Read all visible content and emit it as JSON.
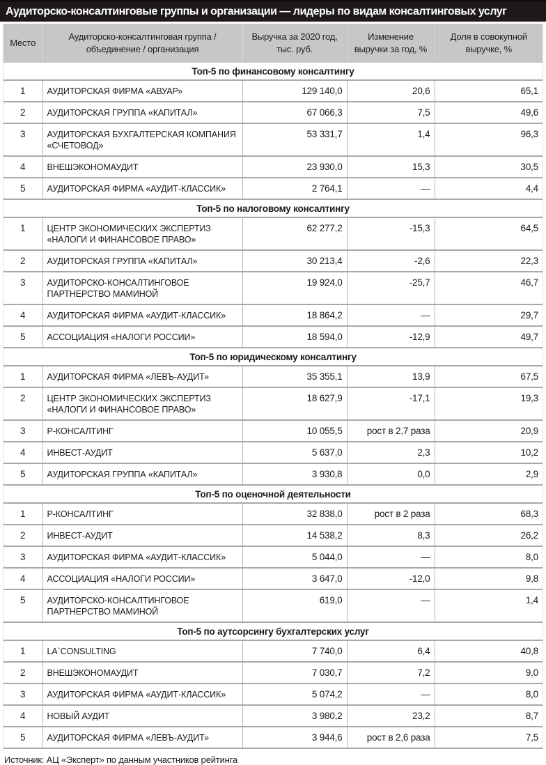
{
  "chart_data": {
    "type": "table",
    "title": "Аудиторско-консалтинговые группы и организации — лидеры по видам консалтинговых услуг",
    "columns": [
      "Место",
      "Аудиторско-консалтинговая группа /\nобъединение / организация",
      "Выручка за 2020 год,\nтыс. руб.",
      "Изменение\nвыручки за год, %",
      "Доля в совокупной\nвыручке, %"
    ],
    "sections": [
      {
        "title": "Топ-5 по финансовому консалтингу",
        "rows": [
          {
            "place": "1",
            "name": "АУДИТОРСКАЯ ФИРМА «АВУАР»",
            "revenue": "129 140,0",
            "change": "20,6",
            "share": "65,1"
          },
          {
            "place": "2",
            "name": "АУДИТОРСКАЯ ГРУППА «КАПИТАЛ»",
            "revenue": "67 066,3",
            "change": "7,5",
            "share": "49,6"
          },
          {
            "place": "3",
            "name": "АУДИТОРСКАЯ БУХГАЛТЕРСКАЯ КОМПАНИЯ «СЧЕТОВОД»",
            "revenue": "53 331,7",
            "change": "1,4",
            "share": "96,3"
          },
          {
            "place": "4",
            "name": "ВНЕШЭКОНОМАУДИТ",
            "revenue": "23 930,0",
            "change": "15,3",
            "share": "30,5"
          },
          {
            "place": "5",
            "name": "АУДИТОРСКАЯ ФИРМА «АУДИТ-КЛАССИК»",
            "revenue": "2 764,1",
            "change": "—",
            "share": "4,4"
          }
        ]
      },
      {
        "title": "Топ-5 по налоговому консалтингу",
        "rows": [
          {
            "place": "1",
            "name": "ЦЕНТР ЭКОНОМИЧЕСКИХ ЭКСПЕРТИЗ «НАЛОГИ И ФИНАНСОВОЕ ПРАВО»",
            "revenue": "62 277,2",
            "change": "-15,3",
            "share": "64,5"
          },
          {
            "place": "2",
            "name": "АУДИТОРСКАЯ ГРУППА «КАПИТАЛ»",
            "revenue": "30 213,4",
            "change": "-2,6",
            "share": "22,3"
          },
          {
            "place": "3",
            "name": "АУДИТОРСКО-КОНСАЛТИНГОВОЕ ПАРТНЕРСТВО МАМИНОЙ",
            "revenue": "19 924,0",
            "change": "-25,7",
            "share": "46,7"
          },
          {
            "place": "4",
            "name": "АУДИТОРСКАЯ ФИРМА «АУДИТ-КЛАССИК»",
            "revenue": "18 864,2",
            "change": "—",
            "share": "29,7"
          },
          {
            "place": "5",
            "name": "АССОЦИАЦИЯ «НАЛОГИ РОССИИ»",
            "revenue": "18 594,0",
            "change": "-12,9",
            "share": "49,7"
          }
        ]
      },
      {
        "title": "Топ-5 по юридическому консалтингу",
        "rows": [
          {
            "place": "1",
            "name": "АУДИТОРСКАЯ ФИРМА «ЛЕВЪ-АУДИТ»",
            "revenue": "35 355,1",
            "change": "13,9",
            "share": "67,5"
          },
          {
            "place": "2",
            "name": "ЦЕНТР ЭКОНОМИЧЕСКИХ ЭКСПЕРТИЗ «НАЛОГИ И ФИНАНСОВОЕ ПРАВО»",
            "revenue": "18 627,9",
            "change": "-17,1",
            "share": "19,3"
          },
          {
            "place": "3",
            "name": "Р-КОНСАЛТИНГ",
            "revenue": "10 055,5",
            "change": "рост в 2,7 раза",
            "share": "20,9"
          },
          {
            "place": "4",
            "name": "ИНВЕСТ-АУДИТ",
            "revenue": "5 637,0",
            "change": "2,3",
            "share": "10,2"
          },
          {
            "place": "5",
            "name": "АУДИТОРСКАЯ ГРУППА «КАПИТАЛ»",
            "revenue": "3 930,8",
            "change": "0,0",
            "share": "2,9"
          }
        ]
      },
      {
        "title": "Топ-5 по оценочной деятельности",
        "rows": [
          {
            "place": "1",
            "name": "Р-КОНСАЛТИНГ",
            "revenue": "32 838,0",
            "change": "рост в 2 раза",
            "share": "68,3"
          },
          {
            "place": "2",
            "name": "ИНВЕСТ-АУДИТ",
            "revenue": "14 538,2",
            "change": "8,3",
            "share": "26,2"
          },
          {
            "place": "3",
            "name": "АУДИТОРСКАЯ ФИРМА «АУДИТ-КЛАССИК»",
            "revenue": "5 044,0",
            "change": "—",
            "share": "8,0"
          },
          {
            "place": "4",
            "name": "АССОЦИАЦИЯ «НАЛОГИ РОССИИ»",
            "revenue": "3 647,0",
            "change": "-12,0",
            "share": "9,8"
          },
          {
            "place": "5",
            "name": "АУДИТОРСКО-КОНСАЛТИНГОВОЕ ПАРТНЕРСТВО МАМИНОЙ",
            "revenue": "619,0",
            "change": "—",
            "share": "1,4"
          }
        ]
      },
      {
        "title": "Топ-5 по аутсорсингу бухгалтерских услуг",
        "rows": [
          {
            "place": "1",
            "name": "LA`CONSULTING",
            "revenue": "7 740,0",
            "change": "6,4",
            "share": "40,8"
          },
          {
            "place": "2",
            "name": "ВНЕШЭКОНОМАУДИТ",
            "revenue": "7 030,7",
            "change": "7,2",
            "share": "9,0"
          },
          {
            "place": "3",
            "name": "АУДИТОРСКАЯ ФИРМА «АУДИТ-КЛАССИК»",
            "revenue": "5 074,2",
            "change": "—",
            "share": "8,0"
          },
          {
            "place": "4",
            "name": "НОВЫЙ АУДИТ",
            "revenue": "3 980,2",
            "change": "23,2",
            "share": "8,7"
          },
          {
            "place": "5",
            "name": "АУДИТОРСКАЯ ФИРМА «ЛЕВЪ-АУДИТ»",
            "revenue": "3 944,6",
            "change": "рост в 2,6 раза",
            "share": "7,5"
          }
        ]
      }
    ],
    "source": "Источник: АЦ «Эксперт» по данным участников рейтинга"
  },
  "colors": {
    "title_bar_bg": "#1d1918",
    "title_text": "#ffffff",
    "header_bg": "#c7c7c7",
    "row_separator": "#a8a8a8",
    "text": "#1a1a1a",
    "footer_strip_bg": "#fbf7ec"
  }
}
